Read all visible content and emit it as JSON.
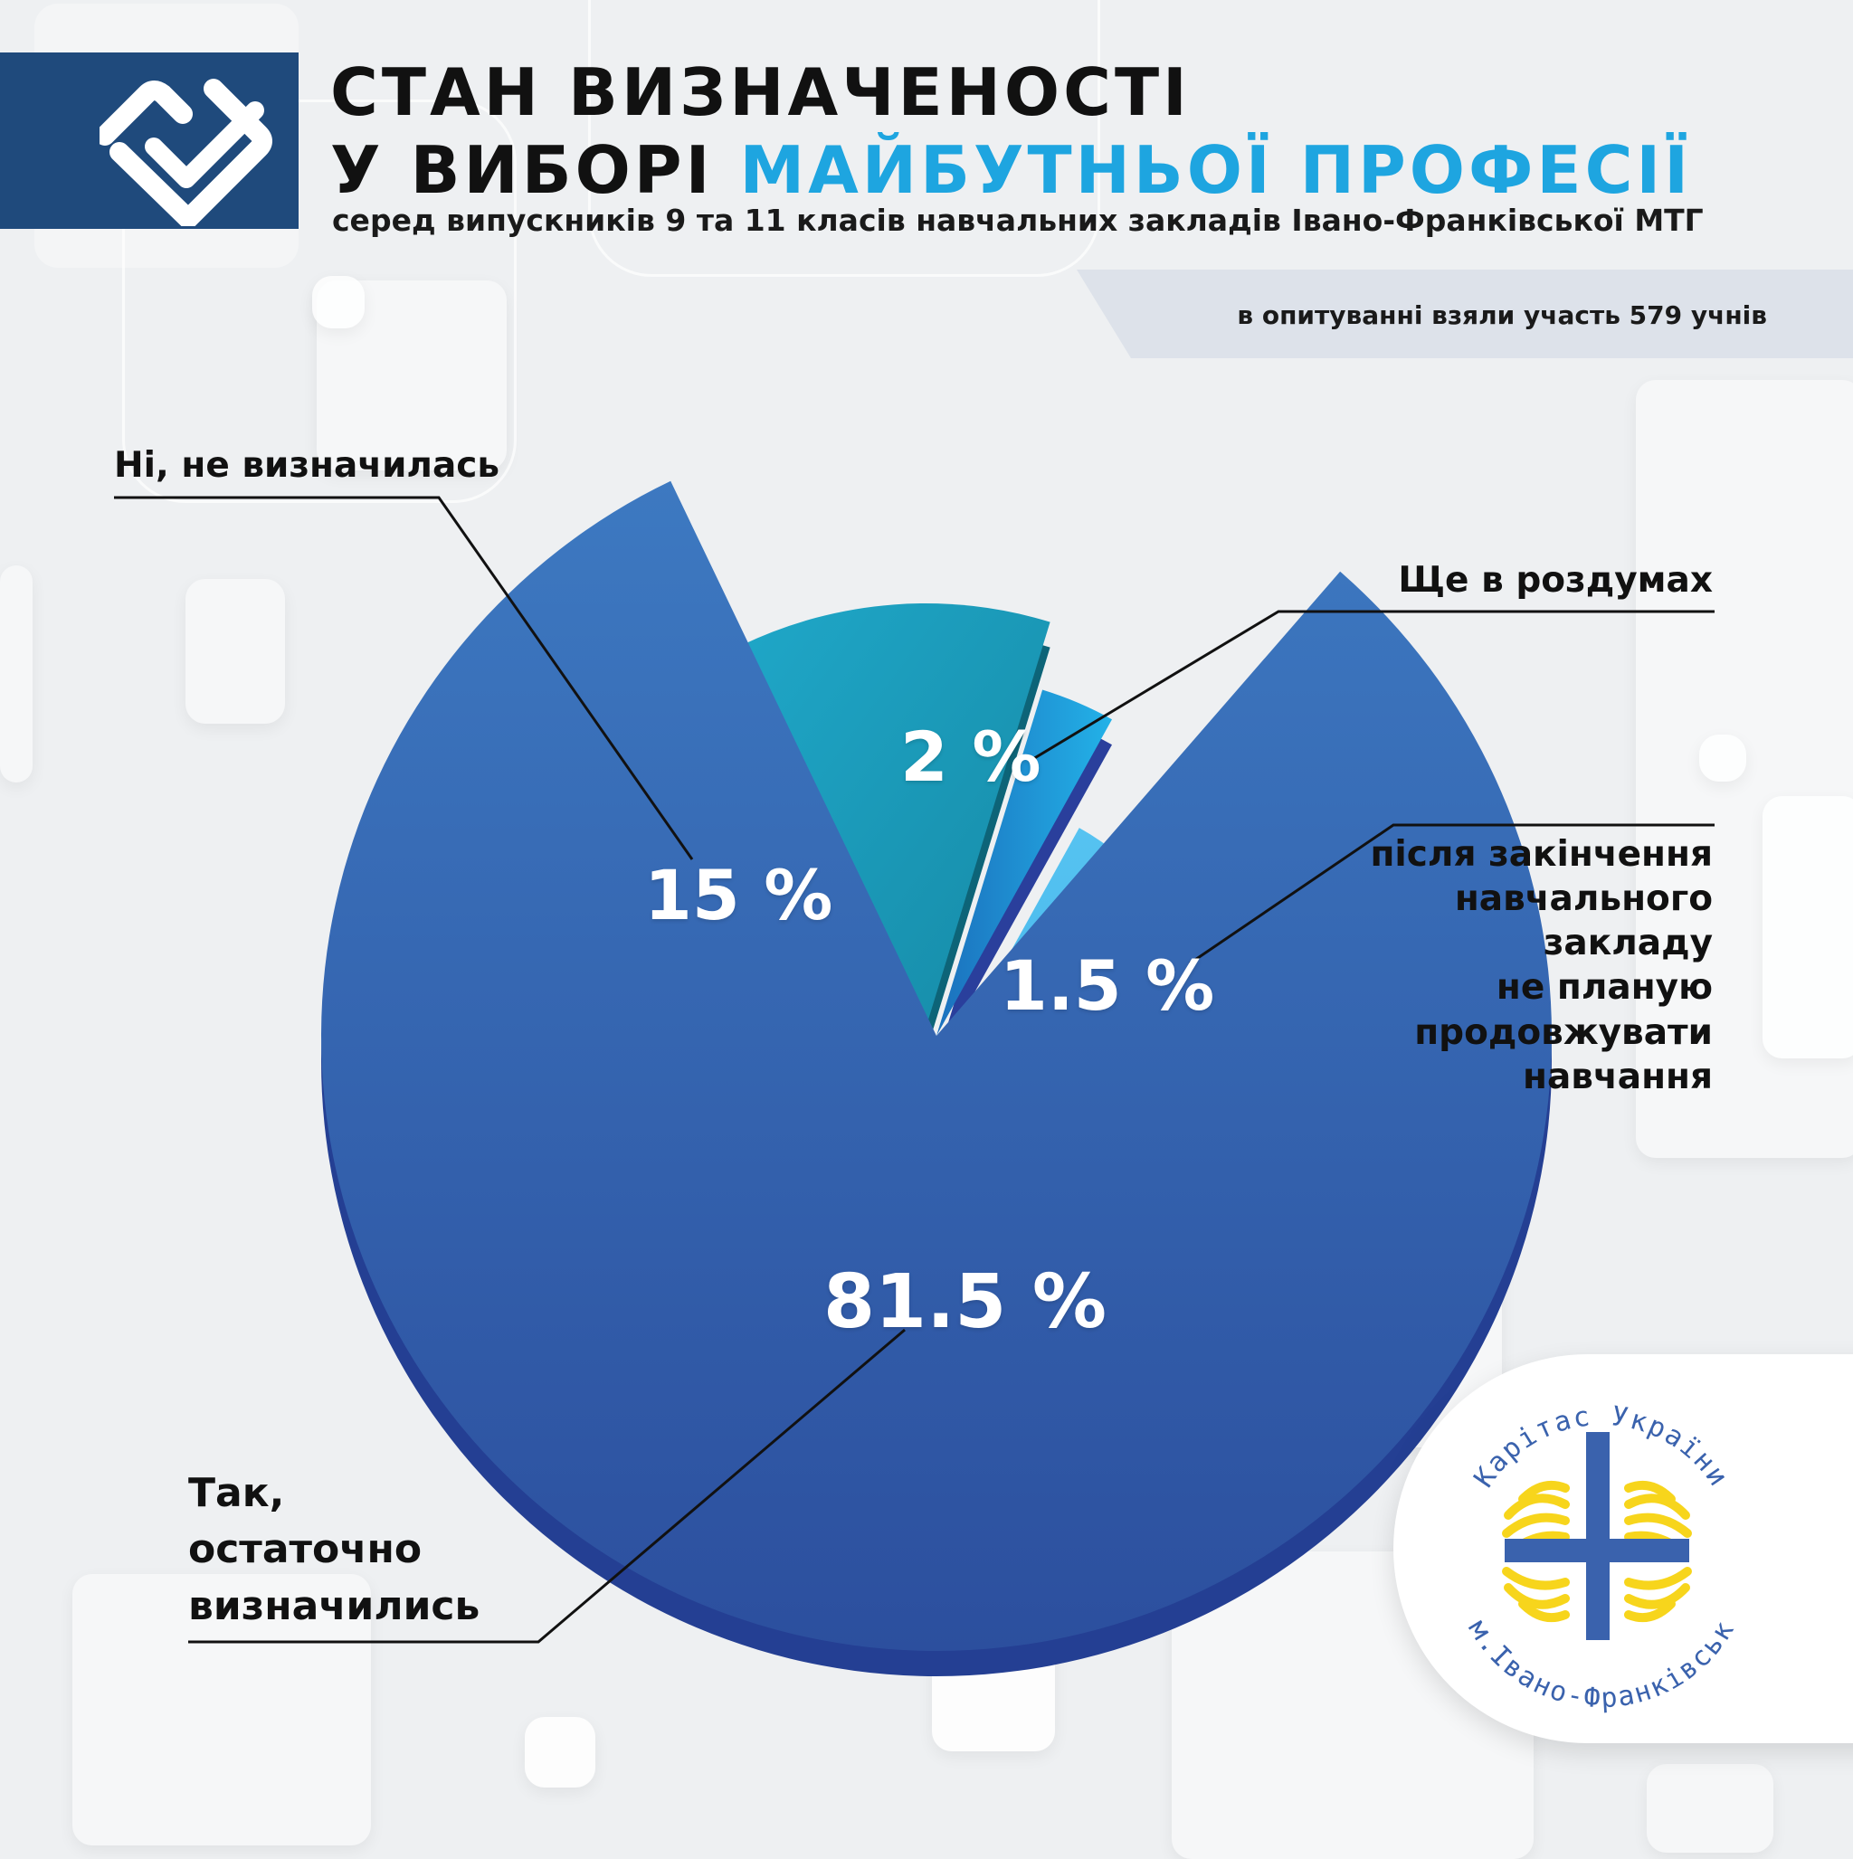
{
  "header": {
    "title_line_1": "СТАН ВИЗНАЧЕНОСТІ",
    "title_line_2_start": "У ВИБОРІ ",
    "title_line_2_highlight": "МАЙБУТНЬОЇ ПРОФЕСІЇ",
    "subtitle": "серед випускників 9 та 11 класів навчальних закладів Івано-Франківської МТГ",
    "survey_note": "в опитуванні взяли участь 579 учнів"
  },
  "icons": {
    "header_logo": "check-logo-icon",
    "caritas_logo": "caritas-cross-icon"
  },
  "colors": {
    "title_highlight": "#1ea5e0",
    "header_band": "#1f4a7c",
    "logo_blue": "#3a62ad",
    "logo_yellow": "#f7d51c"
  },
  "logo": {
    "top_text": "Карітас України",
    "bottom_text": "м.Івано-Франківськ"
  },
  "chart_data": {
    "type": "pie",
    "categories": [
      "Так, остаточно визначились",
      "Ні, не визначилась",
      "Ще в роздумах",
      "після закінчення навчального закладу не планую продовжувати навчання"
    ],
    "values": [
      81.5,
      15,
      2,
      1.5
    ],
    "value_labels": [
      "81.5 %",
      "15 %",
      "2 %",
      "1.5 %"
    ],
    "legend": "callouts",
    "colors": [
      "#3160a8",
      "#1a93b5",
      "#1b78c4",
      "#4fbdee"
    ]
  },
  "callouts": {
    "no": "Ні, не визначилась",
    "thinking": "Ще в роздумах",
    "stop_line_1": "після закінчення",
    "stop_line_2": "навчального",
    "stop_line_3": "закладу",
    "stop_line_4": "не планую",
    "stop_line_5": "продовжувати",
    "stop_line_6": "навчання",
    "yes_line_1": "Так,",
    "yes_line_2": "остаточно",
    "yes_line_3": "визначились"
  }
}
